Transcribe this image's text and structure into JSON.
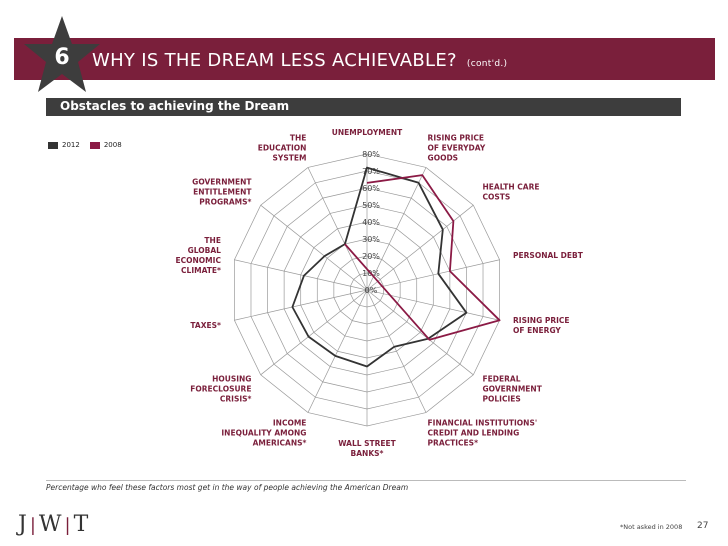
{
  "slide": {
    "number": "6",
    "title": "WHY IS THE DREAM LESS ACHIEVABLE?",
    "title_suffix": "(cont'd.)",
    "section_title": "Obstacles to achieving the Dream",
    "caption": "Percentage who feel these factors most get in the way of people achieving the American Dream",
    "footnote": "*Not asked in 2008",
    "page_number": "27",
    "logo": {
      "left": "J",
      "mid": "W",
      "right": "T"
    }
  },
  "colors": {
    "header": "#7a1f3b",
    "section": "#3d3d3d",
    "series_2012": "#333333",
    "series_2008": "#8b1a45",
    "grid": "#9a9a9a"
  },
  "chart_data": {
    "type": "radar",
    "categories": [
      "UNEMPLOYMENT",
      "RISING PRICE OF EVERYDAY GOODS",
      "HEALTH CARE COSTS",
      "PERSONAL DEBT",
      "RISING PRICE OF ENERGY",
      "FEDERAL GOVERNMENT POLICIES",
      "FINANCIAL INSTITUTIONS' CREDIT AND LENDING PRACTICES*",
      "WALL STREET BANKS*",
      "INCOME INEQUALITY AMONG AMERICANS*",
      "HOUSING FORECLOSURE CRISIS*",
      "TAXES*",
      "THE GLOBAL ECONOMIC CLIMATE*",
      "GOVERNMENT ENTITLEMENT PROGRAMS*",
      "THE EDUCATION SYSTEM"
    ],
    "category_lines": [
      [
        "UNEMPLOYMENT"
      ],
      [
        "RISING PRICE",
        "OF EVERYDAY",
        "GOODS"
      ],
      [
        "HEALTH CARE",
        "COSTS"
      ],
      [
        "PERSONAL DEBT"
      ],
      [
        "RISING PRICE",
        "OF ENERGY"
      ],
      [
        "FEDERAL",
        "GOVERNMENT",
        "POLICIES"
      ],
      [
        "FINANCIAL INSTITUTIONS'",
        "CREDIT AND LENDING",
        "PRACTICES*"
      ],
      [
        "WALL STREET",
        "BANKS*"
      ],
      [
        "INCOME",
        "INEQUALITY AMONG",
        "AMERICANS*"
      ],
      [
        "HOUSING",
        "FORECLOSURE",
        "CRISIS*"
      ],
      [
        "TAXES*"
      ],
      [
        "THE",
        "GLOBAL",
        "ECONOMIC",
        "CLIMATE*"
      ],
      [
        "GOVERNMENT",
        "ENTITLEMENT",
        "PROGRAMS*"
      ],
      [
        "THE",
        "EDUCATION",
        "SYSTEM"
      ]
    ],
    "ticks": [
      "0%",
      "10%",
      "20%",
      "30%",
      "40%",
      "50%",
      "60%",
      "70%",
      "80%"
    ],
    "rmax": 80,
    "series": [
      {
        "name": "2012",
        "values": [
          72,
          70,
          57,
          43,
          60,
          46,
          37,
          45,
          43,
          44,
          45,
          38,
          32,
          30
        ]
      },
      {
        "name": "2008",
        "values": [
          63,
          75,
          65,
          50,
          80,
          47,
          null,
          null,
          null,
          null,
          null,
          null,
          null,
          30
        ]
      }
    ]
  }
}
